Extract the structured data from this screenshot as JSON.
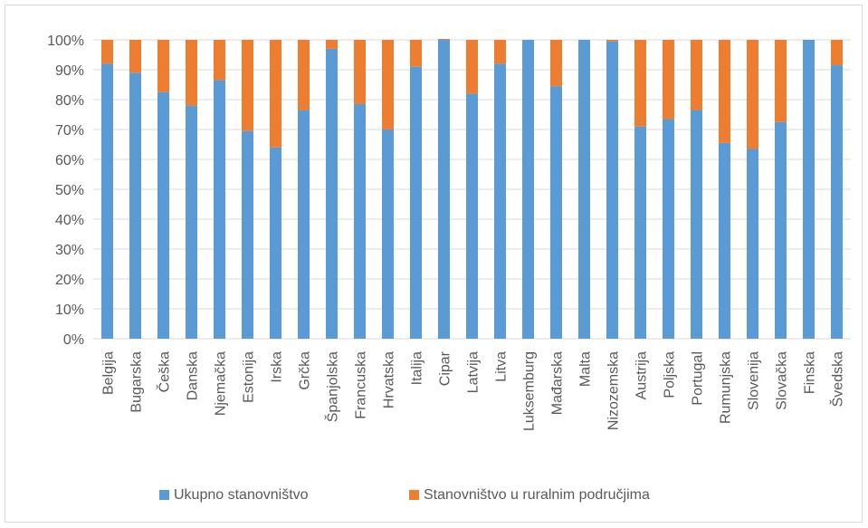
{
  "chart_data": {
    "type": "bar",
    "stacked": true,
    "normalized": true,
    "categories": [
      "Belgija",
      "Bugarska",
      "Češka",
      "Danska",
      "Njemačka",
      "Estonija",
      "Irska",
      "Grčka",
      "Španjolska",
      "Francuska",
      "Hrvatska",
      "Italija",
      "Cipar",
      "Latvija",
      "Litva",
      "Luksemburg",
      "Mađarska",
      "Malta",
      "Nizozemska",
      "Austrija",
      "Poljska",
      "Portugal",
      "Rumunjska",
      "Slovenija",
      "Slovačka",
      "Finska",
      "Švedska"
    ],
    "series": [
      {
        "name": "Ukupno stanovništvo",
        "color": "#5b9bd5",
        "values": [
          92,
          89,
          82.5,
          78,
          86.5,
          69.5,
          64,
          76.5,
          97,
          78.5,
          70,
          91,
          100,
          82,
          92,
          100,
          84.5,
          100,
          99.5,
          71,
          73.5,
          76.5,
          65.5,
          63.5,
          72.5,
          100,
          91.5
        ]
      },
      {
        "name": "Stanovništvo u ruralnim područjima",
        "color": "#ed7d31",
        "values": [
          8,
          11,
          17.5,
          22,
          13.5,
          30.5,
          36,
          23.5,
          3,
          21.5,
          30,
          9,
          0.3,
          18,
          8,
          0,
          15.5,
          0,
          0.5,
          29,
          26.5,
          23.5,
          34.5,
          36.5,
          27.5,
          0,
          8.5
        ]
      }
    ],
    "y_ticks": [
      "0%",
      "10%",
      "20%",
      "30%",
      "40%",
      "50%",
      "60%",
      "70%",
      "80%",
      "90%",
      "100%"
    ],
    "ylim": [
      0,
      100
    ],
    "grid": true,
    "legend_position": "bottom"
  }
}
